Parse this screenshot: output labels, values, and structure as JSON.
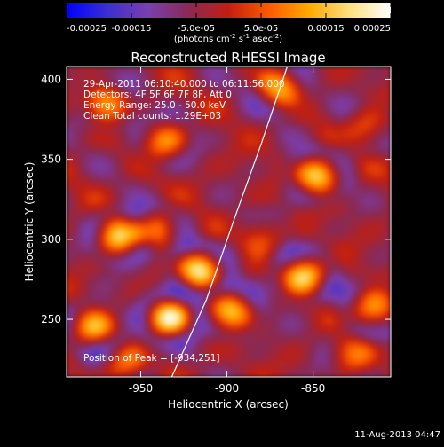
{
  "colorbar": {
    "tick_labels": [
      "-0.00025",
      "-0.00015",
      "-5.0e-05",
      "5.0e-05",
      "0.00015",
      "0.00025"
    ],
    "tick_values": [
      -0.00025,
      -0.00015,
      -5e-05,
      5e-05,
      0.00015,
      0.00025
    ],
    "range": [
      -0.00025,
      0.00025
    ],
    "units_prefix": "(photons cm",
    "units_sup1": "-2",
    "units_mid": " s",
    "units_sup2": "-1",
    "units_asec": " asec",
    "units_sup3": "-2",
    "units_suffix": ")",
    "stops": [
      "#0000ff",
      "#3a2fd0",
      "#7a3fb0",
      "#8a2a55",
      "#c21f10",
      "#ff5a00",
      "#ffaa00",
      "#ffe080",
      "#ffffff"
    ]
  },
  "chart_data": {
    "type": "heatmap",
    "title": "Reconstructed RHESSI Image",
    "xlabel": "Heliocentric X (arcsec)",
    "ylabel": "Heliocentric Y (arcsec)",
    "xlim": [
      -993,
      -805
    ],
    "ylim": [
      214,
      408
    ],
    "x_ticks": [
      -950,
      -900,
      -850
    ],
    "y_ticks": [
      250,
      300,
      350,
      400
    ],
    "annotations": [
      "29-Apr-2011 06:10:40.000 to 06:11:56.000",
      "Detectors: 4F 5F 6F 7F 8F, Att 0",
      "Energy Range: 25.0 - 50.0 keV",
      "Clean    Total counts: 1.29E+03"
    ],
    "peak_label": "Position of Peak = [-934,251]",
    "peak": [
      -934,
      251
    ],
    "sources": [
      {
        "x": -934,
        "y": 251,
        "intensity": 1.0
      },
      {
        "x": -915,
        "y": 281,
        "intensity": 0.95
      },
      {
        "x": -898,
        "y": 255,
        "intensity": 0.7
      },
      {
        "x": -963,
        "y": 302,
        "intensity": 0.75
      },
      {
        "x": -940,
        "y": 306,
        "intensity": 0.55
      },
      {
        "x": -855,
        "y": 278,
        "intensity": 0.8
      },
      {
        "x": -847,
        "y": 340,
        "intensity": 0.85
      },
      {
        "x": -815,
        "y": 256,
        "intensity": 0.65
      },
      {
        "x": -970,
        "y": 385,
        "intensity": 0.6
      },
      {
        "x": -936,
        "y": 362,
        "intensity": 0.5
      },
      {
        "x": -870,
        "y": 395,
        "intensity": 0.55
      },
      {
        "x": -978,
        "y": 244,
        "intensity": 0.6
      },
      {
        "x": -960,
        "y": 222,
        "intensity": 0.45
      },
      {
        "x": -880,
        "y": 302,
        "intensity": 0.35
      },
      {
        "x": -818,
        "y": 370,
        "intensity": 0.4
      },
      {
        "x": -828,
        "y": 228,
        "intensity": 0.4
      }
    ],
    "limb_arc": [
      [
        -932,
        214
      ],
      [
        -912,
        262
      ],
      [
        -895,
        315
      ],
      [
        -880,
        360
      ],
      [
        -865,
        408
      ]
    ]
  },
  "footer": {
    "timestamp": "11-Aug-2013 04:47"
  }
}
